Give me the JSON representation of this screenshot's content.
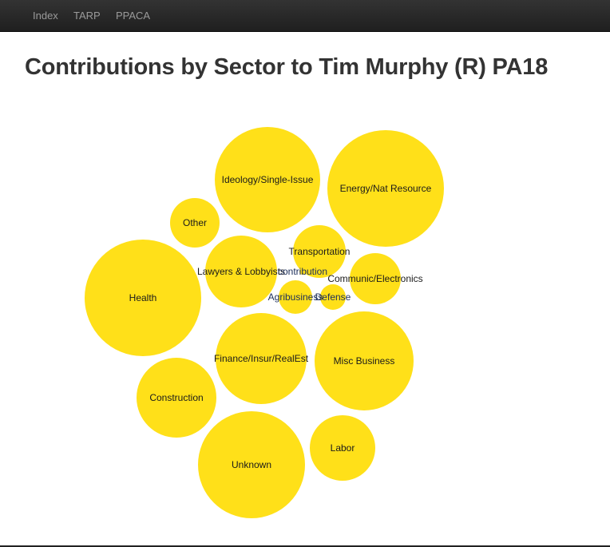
{
  "nav": {
    "items": [
      "Index",
      "TARP",
      "PPACA"
    ]
  },
  "page_title": "Contributions by Sector to Tim Murphy (R) PA18",
  "colors": {
    "bubble_fill": "#FFE019",
    "label_text": "#1a1a1a",
    "small_label_text": "#1c2e5a",
    "navbar_bg": "#2b2b2b",
    "nav_text": "#9a9a9a",
    "title_text": "#333333"
  },
  "chart_data": {
    "type": "bubble",
    "title": "Contributions by Sector to Tim Murphy (R) PA18",
    "bubbles": [
      {
        "label": "Health",
        "relative_size": 73
      },
      {
        "label": "Energy/Nat Resource",
        "relative_size": 73
      },
      {
        "label": "Unknown",
        "relative_size": 67
      },
      {
        "label": "Ideology/Single-Issue",
        "relative_size": 66
      },
      {
        "label": "Misc Business",
        "relative_size": 62
      },
      {
        "label": "Finance/Insur/RealEst",
        "relative_size": 57
      },
      {
        "label": "Construction",
        "relative_size": 50
      },
      {
        "label": "Lawyers & Lobbyists",
        "relative_size": 45
      },
      {
        "label": "Labor",
        "relative_size": 41
      },
      {
        "label": "Transportation",
        "relative_size": 33
      },
      {
        "label": "Communic/Electronics",
        "relative_size": 32
      },
      {
        "label": "Other",
        "relative_size": 31
      },
      {
        "label": "Agribusiness",
        "relative_size": 21
      },
      {
        "label": "Defense",
        "relative_size": 16
      },
      {
        "label": "contribution",
        "relative_size": 4
      }
    ]
  }
}
